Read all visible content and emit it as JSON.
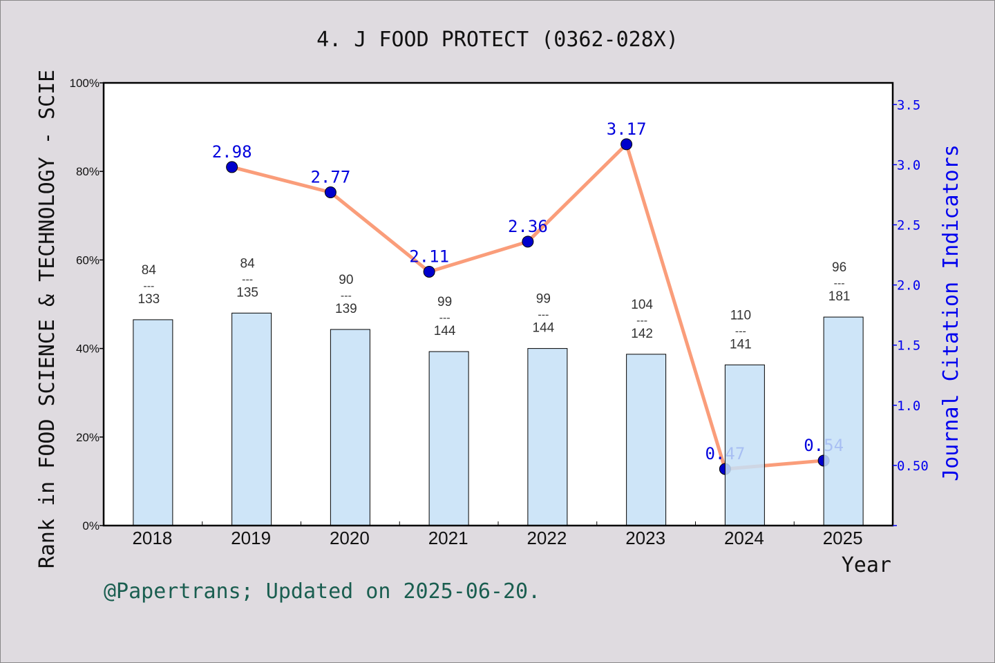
{
  "chart_data": {
    "type": "bar+line",
    "title": "4. J FOOD PROTECT (0362-028X)",
    "xlabel": "Year",
    "ylabel_left": "Rank in FOOD SCIENCE & TECHNOLOGY - SCIE",
    "ylabel_right": "Journal Citation Indicators",
    "categories": [
      "2018",
      "2019",
      "2020",
      "2021",
      "2022",
      "2023",
      "2024",
      "2025"
    ],
    "left_axis": {
      "ylim": [
        0,
        100
      ],
      "ticks": [
        "0%",
        "20%",
        "40%",
        "60%",
        "80%",
        "100%"
      ]
    },
    "right_axis": {
      "ylim": [
        0,
        3.68
      ],
      "ticks": [
        "0.50",
        "1.0",
        "1.5",
        "2.0",
        "2.5",
        "3.0",
        "3.5"
      ],
      "tick_values": [
        0.5,
        1.0,
        1.5,
        2.0,
        2.5,
        3.0,
        3.5
      ]
    },
    "bars": {
      "values_percent": [
        46.5,
        48.0,
        44.3,
        39.3,
        40.0,
        38.7,
        36.3,
        47.1
      ],
      "rank_labels": [
        {
          "rank": "84",
          "total": "133"
        },
        {
          "rank": "84",
          "total": "135"
        },
        {
          "rank": "90",
          "total": "139"
        },
        {
          "rank": "99",
          "total": "144"
        },
        {
          "rank": "99",
          "total": "144"
        },
        {
          "rank": "104",
          "total": "142"
        },
        {
          "rank": "110",
          "total": "141"
        },
        {
          "rank": "96",
          "total": "181"
        }
      ],
      "separator": "---",
      "color": "#c5e0f7"
    },
    "line": {
      "categories": [
        "2019",
        "2020",
        "2021",
        "2022",
        "2023",
        "2024",
        "2025"
      ],
      "values": [
        2.98,
        2.77,
        2.11,
        2.36,
        3.17,
        0.47,
        0.54
      ],
      "labels": [
        "2.98",
        "2.77",
        "2.11",
        "2.36",
        "3.17",
        "0.47",
        "0.54"
      ],
      "line_color": "#fa9d7a",
      "marker_color": "#0000cc",
      "label_color": "#0000dd"
    },
    "grid": false
  },
  "footer": "@Papertrans; Updated on 2025-06-20."
}
